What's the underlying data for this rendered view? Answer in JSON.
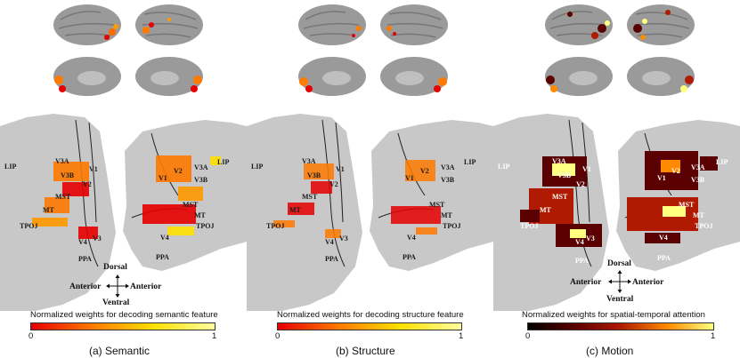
{
  "panels": [
    {
      "id": "semantic",
      "caption": "(a) Semantic",
      "colorbar_title": "Normalized weights for decoding semantic feature",
      "colorbar_min": "0",
      "colorbar_max": "1",
      "colormap": [
        "#e60000",
        "#ff7a00",
        "#ffe000",
        "#ffffa0"
      ],
      "labels": {
        "lip_l": "LIP",
        "v3a_l": "V3A",
        "v3b_l": "V3B",
        "v1_l": "V1",
        "v2_l": "V2",
        "mst_l": "MST",
        "mt_l": "MT",
        "tpoj_l": "TPOJ",
        "v4_l": "V4",
        "v3_l": "V3",
        "ppa_l": "PPA",
        "v2_r": "V2",
        "v1_r": "V1",
        "v3a_r": "V3A",
        "v3b_r": "V3B",
        "lip_r": "LIP",
        "mst_r": "MST",
        "mt_r": "MT",
        "tpoj_r": "TPOJ",
        "v4_r": "V4",
        "ppa_r": "PPA"
      }
    },
    {
      "id": "structure",
      "caption": "(b) Structure",
      "colorbar_title": "Normalized weights for decoding structure feature",
      "colorbar_min": "0",
      "colorbar_max": "1",
      "colormap": [
        "#e60000",
        "#ff7a00",
        "#ffe000",
        "#ffffa0"
      ],
      "labels": {
        "lip_l": "LIP",
        "v3a_l": "V3A",
        "v3b_l": "V3B",
        "v1_l": "V1",
        "v2_l": "V2",
        "mst_l": "MST",
        "mt_l": "MT",
        "tpoj_l": "TPOJ",
        "v4_l": "V4",
        "v3_l": "V3",
        "ppa_l": "PPA",
        "v2_r": "V2",
        "v1_r": "V1",
        "v3a_r": "V3A",
        "v3b_r": "V3B",
        "lip_r": "LIP",
        "mst_r": "MST",
        "mt_r": "MT",
        "tpoj_r": "TPOJ",
        "v4_r": "V4",
        "ppa_r": "PPA"
      }
    },
    {
      "id": "motion",
      "caption": "(c) Motion",
      "colorbar_title": "Normalized weights for spatial-temporal attention",
      "colorbar_min": "0",
      "colorbar_max": "1",
      "colormap": [
        "#000000",
        "#5a0000",
        "#b01a00",
        "#ff8a00",
        "#ffff80"
      ],
      "labels": {
        "lip_l": "LIP",
        "v3a_l": "V3A",
        "v3b_l": "V3B",
        "v1_l": "V1",
        "v2_l": "V2",
        "mst_l": "MST",
        "mt_l": "MT",
        "tpoj_l": "TPOJ",
        "v4_l": "V4",
        "v3_l": "V3",
        "ppa_l": "PPA",
        "v2_r": "V2",
        "v1_r": "V1",
        "v3a_r": "V3A",
        "v3b_r": "V3B",
        "lip_r": "LIP",
        "mst_r": "MST",
        "mt_r": "MT",
        "tpoj_r": "TPOJ",
        "v4_r": "V4",
        "ppa_r": "PPA"
      }
    }
  ],
  "compass": {
    "dorsal": "Dorsal",
    "ventral": "Ventral",
    "anterior_left": "Anterior",
    "anterior_right": "Anterior"
  }
}
